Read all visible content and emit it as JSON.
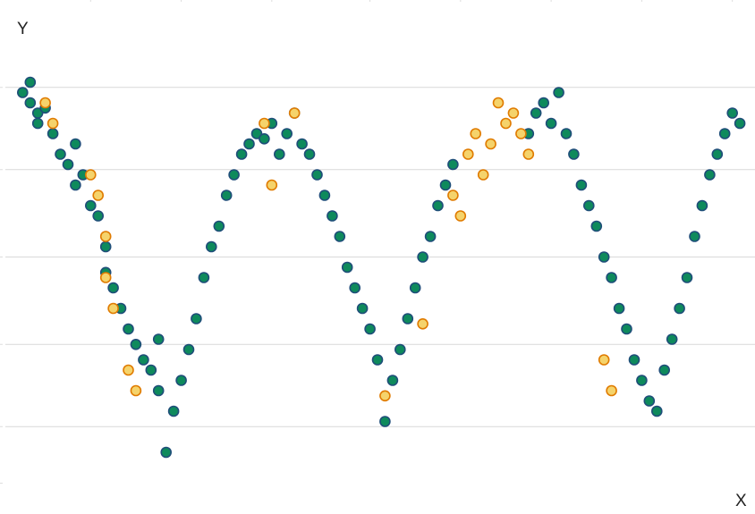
{
  "chart_data": {
    "type": "scatter",
    "title": "",
    "xlabel": "X",
    "ylabel": "Y",
    "xlim": [
      0,
      1
    ],
    "ylim": [
      0,
      1
    ],
    "grid": true,
    "legend": "none",
    "x_ticks": [
      0.12,
      0.24,
      0.36,
      0.49,
      0.61,
      0.73,
      0.85,
      0.97
    ],
    "y_ticks": [
      0.06,
      0.17,
      0.33,
      0.5,
      0.67,
      0.83
    ],
    "gridlines_y": [
      0.17,
      0.33,
      0.5,
      0.67,
      0.83
    ],
    "series": [
      {
        "color": "#0e8a5c",
        "edge_color": "#1f4e79",
        "points": [
          [
            0.03,
            0.82
          ],
          [
            0.04,
            0.8
          ],
          [
            0.04,
            0.84
          ],
          [
            0.05,
            0.78
          ],
          [
            0.05,
            0.76
          ],
          [
            0.06,
            0.79
          ],
          [
            0.07,
            0.74
          ],
          [
            0.08,
            0.7
          ],
          [
            0.09,
            0.68
          ],
          [
            0.1,
            0.72
          ],
          [
            0.1,
            0.64
          ],
          [
            0.11,
            0.66
          ],
          [
            0.12,
            0.6
          ],
          [
            0.13,
            0.58
          ],
          [
            0.14,
            0.52
          ],
          [
            0.14,
            0.47
          ],
          [
            0.15,
            0.44
          ],
          [
            0.16,
            0.4
          ],
          [
            0.17,
            0.36
          ],
          [
            0.18,
            0.33
          ],
          [
            0.19,
            0.3
          ],
          [
            0.2,
            0.28
          ],
          [
            0.21,
            0.34
          ],
          [
            0.21,
            0.24
          ],
          [
            0.22,
            0.12
          ],
          [
            0.23,
            0.2
          ],
          [
            0.24,
            0.26
          ],
          [
            0.25,
            0.32
          ],
          [
            0.26,
            0.38
          ],
          [
            0.27,
            0.46
          ],
          [
            0.28,
            0.52
          ],
          [
            0.29,
            0.56
          ],
          [
            0.3,
            0.62
          ],
          [
            0.31,
            0.66
          ],
          [
            0.32,
            0.7
          ],
          [
            0.33,
            0.72
          ],
          [
            0.34,
            0.74
          ],
          [
            0.35,
            0.73
          ],
          [
            0.36,
            0.76
          ],
          [
            0.37,
            0.7
          ],
          [
            0.38,
            0.74
          ],
          [
            0.39,
            0.78
          ],
          [
            0.4,
            0.72
          ],
          [
            0.41,
            0.7
          ],
          [
            0.42,
            0.66
          ],
          [
            0.43,
            0.62
          ],
          [
            0.44,
            0.58
          ],
          [
            0.45,
            0.54
          ],
          [
            0.46,
            0.48
          ],
          [
            0.47,
            0.44
          ],
          [
            0.48,
            0.4
          ],
          [
            0.49,
            0.36
          ],
          [
            0.5,
            0.3
          ],
          [
            0.51,
            0.18
          ],
          [
            0.52,
            0.26
          ],
          [
            0.53,
            0.32
          ],
          [
            0.54,
            0.38
          ],
          [
            0.55,
            0.44
          ],
          [
            0.56,
            0.5
          ],
          [
            0.57,
            0.54
          ],
          [
            0.58,
            0.6
          ],
          [
            0.59,
            0.64
          ],
          [
            0.6,
            0.68
          ],
          [
            0.7,
            0.74
          ],
          [
            0.71,
            0.78
          ],
          [
            0.72,
            0.8
          ],
          [
            0.73,
            0.76
          ],
          [
            0.74,
            0.82
          ],
          [
            0.75,
            0.74
          ],
          [
            0.76,
            0.7
          ],
          [
            0.77,
            0.64
          ],
          [
            0.78,
            0.6
          ],
          [
            0.79,
            0.56
          ],
          [
            0.8,
            0.5
          ],
          [
            0.81,
            0.46
          ],
          [
            0.82,
            0.4
          ],
          [
            0.83,
            0.36
          ],
          [
            0.84,
            0.3
          ],
          [
            0.85,
            0.26
          ],
          [
            0.86,
            0.22
          ],
          [
            0.87,
            0.2
          ],
          [
            0.88,
            0.28
          ],
          [
            0.89,
            0.34
          ],
          [
            0.9,
            0.4
          ],
          [
            0.91,
            0.46
          ],
          [
            0.92,
            0.54
          ],
          [
            0.93,
            0.6
          ],
          [
            0.94,
            0.66
          ],
          [
            0.95,
            0.7
          ],
          [
            0.96,
            0.74
          ],
          [
            0.97,
            0.78
          ],
          [
            0.98,
            0.76
          ]
        ]
      },
      {
        "color": "#f5d36b",
        "edge_color": "#e07b00",
        "points": [
          [
            0.06,
            0.8
          ],
          [
            0.07,
            0.76
          ],
          [
            0.12,
            0.66
          ],
          [
            0.13,
            0.62
          ],
          [
            0.14,
            0.54
          ],
          [
            0.14,
            0.46
          ],
          [
            0.15,
            0.4
          ],
          [
            0.17,
            0.28
          ],
          [
            0.18,
            0.24
          ],
          [
            0.35,
            0.76
          ],
          [
            0.36,
            0.64
          ],
          [
            0.39,
            0.78
          ],
          [
            0.6,
            0.62
          ],
          [
            0.61,
            0.58
          ],
          [
            0.62,
            0.7
          ],
          [
            0.63,
            0.74
          ],
          [
            0.64,
            0.66
          ],
          [
            0.65,
            0.72
          ],
          [
            0.66,
            0.8
          ],
          [
            0.67,
            0.76
          ],
          [
            0.68,
            0.78
          ],
          [
            0.69,
            0.74
          ],
          [
            0.7,
            0.7
          ],
          [
            0.8,
            0.3
          ],
          [
            0.81,
            0.24
          ],
          [
            0.51,
            0.23
          ],
          [
            0.56,
            0.37
          ]
        ]
      }
    ]
  }
}
